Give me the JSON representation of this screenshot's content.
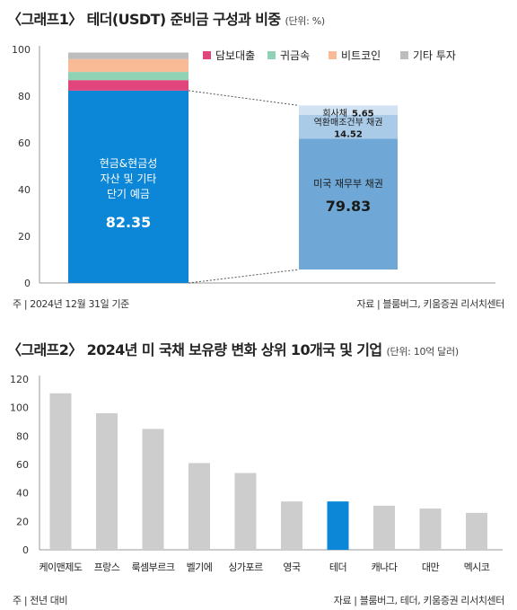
{
  "chart_data": [
    {
      "type": "bar",
      "title": "〈그래프1〉 테더(USDT) 준비금 구성과 비중",
      "unit": "(단위: %)",
      "ylim": [
        0,
        100
      ],
      "yticks": [
        0,
        20,
        40,
        60,
        80,
        100
      ],
      "grid": false,
      "legend_position": "top-right",
      "legend": [
        {
          "name": "담보대출",
          "color": "#e0457b"
        },
        {
          "name": "귀금속",
          "color": "#8fd3b4"
        },
        {
          "name": "비트코인",
          "color": "#f9bb96"
        },
        {
          "name": "기타 투자",
          "color": "#bdbdbd"
        }
      ],
      "main_bar": {
        "segments": [
          {
            "name": "현금&현금성 자산 및 기타 단기 예금",
            "value": 82.35,
            "color": "#0c86d6"
          },
          {
            "name": "담보대출",
            "value": 4.5,
            "color": "#e0457b"
          },
          {
            "name": "귀금속",
            "value": 3.5,
            "color": "#8fd3b4"
          },
          {
            "name": "비트코인",
            "value": 5.5,
            "color": "#f9bb96"
          },
          {
            "name": "기타 투자",
            "value": 2.8,
            "color": "#bdbdbd"
          }
        ],
        "label_lines": [
          "현금&현금성",
          "자산 및 기타",
          "단기 예금"
        ],
        "value_label": "82.35"
      },
      "breakdown_bar": {
        "segments": [
          {
            "name": "미국 재무부 채권",
            "value": 79.83,
            "color": "#6fa8d6",
            "value_label": "79.83"
          },
          {
            "name": "역환매조건부 채권",
            "value": 14.52,
            "color": "#a9cbe8",
            "value_label": "14.52"
          },
          {
            "name": "회사채",
            "value": 5.65,
            "color": "#d1e3f3",
            "value_label": "5.65"
          }
        ]
      },
      "note_left": "주 | 2024년 12월 31일 기준",
      "note_right": "자료 | 블룸버그, 키움증권 리서치센터"
    },
    {
      "type": "bar",
      "title": "〈그래프2〉 2024년 미 국채 보유량 변화 상위 10개국 및 기업",
      "unit": "(단위: 10억 달러)",
      "ylim": [
        0,
        120
      ],
      "yticks": [
        0,
        20,
        40,
        60,
        80,
        100,
        120
      ],
      "grid": false,
      "categories": [
        "케이맨제도",
        "프랑스",
        "룩셈부르크",
        "벨기에",
        "싱가포르",
        "영국",
        "테더",
        "캐나다",
        "대만",
        "멕시코"
      ],
      "values": [
        110,
        96,
        85,
        61,
        54,
        34,
        34,
        31,
        29,
        26
      ],
      "colors": [
        "#cdcdcd",
        "#cdcdcd",
        "#cdcdcd",
        "#cdcdcd",
        "#cdcdcd",
        "#cdcdcd",
        "#0c86d6",
        "#cdcdcd",
        "#cdcdcd",
        "#cdcdcd"
      ],
      "note_left": "주 | 전년 대비",
      "note_right": "자료 | 블룸버그, 테더, 키움증권 리서치센터"
    }
  ]
}
